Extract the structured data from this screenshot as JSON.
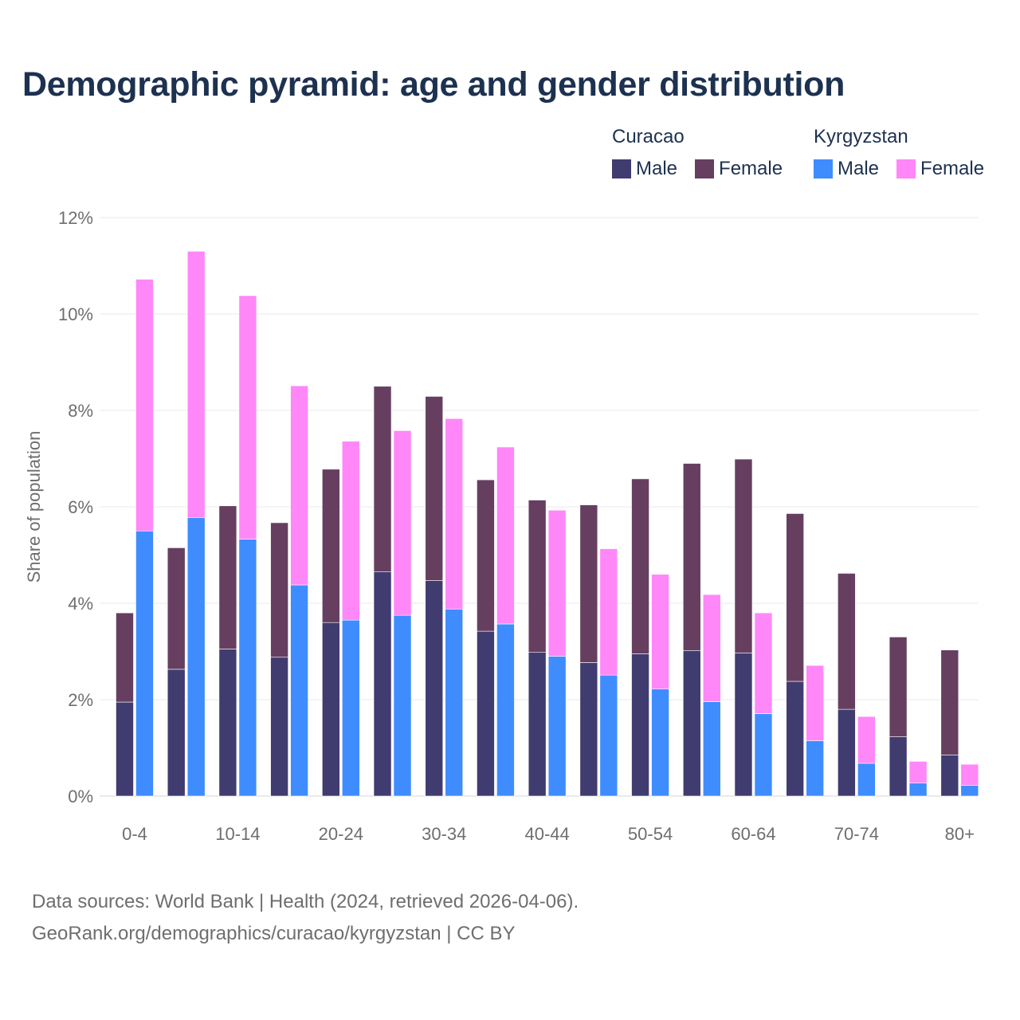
{
  "chart_data": {
    "type": "bar",
    "title": "Demographic pyramid: age and gender distribution",
    "ylabel": "Share of population",
    "xlabel": "",
    "ylim": [
      0,
      12
    ],
    "yticks": [
      "0%",
      "2%",
      "4%",
      "6%",
      "8%",
      "10%",
      "12%"
    ],
    "ytick_values": [
      0,
      2,
      4,
      6,
      8,
      10,
      12
    ],
    "categories": [
      "0-4",
      "5-9",
      "10-14",
      "15-19",
      "20-24",
      "25-29",
      "30-34",
      "35-39",
      "40-44",
      "45-49",
      "50-54",
      "55-59",
      "60-64",
      "65-69",
      "70-74",
      "75-79",
      "80+"
    ],
    "xtick_labels": [
      "0-4",
      "",
      "10-14",
      "",
      "20-24",
      "",
      "30-34",
      "",
      "40-44",
      "",
      "50-54",
      "",
      "60-64",
      "",
      "70-74",
      "",
      "80+"
    ],
    "stacked": true,
    "groups": [
      {
        "name": "Curacao",
        "series": [
          {
            "name": "Male",
            "color": "#403c70",
            "values": [
              1.95,
              2.63,
              3.05,
              2.88,
              3.6,
              4.65,
              4.47,
              3.42,
              2.98,
              2.77,
              2.95,
              3.02,
              2.97,
              2.38,
              1.8,
              1.23,
              0.85
            ]
          },
          {
            "name": "Female",
            "color": "#663f60",
            "values": [
              1.85,
              2.52,
              2.97,
              2.79,
              3.18,
              3.85,
              3.82,
              3.14,
              3.16,
              3.27,
              3.63,
              3.88,
              4.02,
              3.48,
              2.82,
              2.07,
              2.18
            ]
          }
        ]
      },
      {
        "name": "Kyrgyzstan",
        "series": [
          {
            "name": "Male",
            "color": "#3f8cff",
            "values": [
              5.5,
              5.78,
              5.33,
              4.38,
              3.65,
              3.75,
              3.88,
              3.57,
              2.9,
              2.51,
              2.22,
              1.96,
              1.71,
              1.15,
              0.68,
              0.27,
              0.22
            ]
          },
          {
            "name": "Female",
            "color": "#ff87f8",
            "values": [
              5.22,
              5.52,
              5.05,
              4.13,
              3.71,
              3.83,
              3.95,
              3.67,
              3.03,
              2.62,
              2.38,
              2.22,
              2.09,
              1.56,
              0.97,
              0.45,
              0.44
            ]
          }
        ]
      }
    ],
    "legend": {
      "position": "top-right"
    },
    "grid": true
  },
  "footer": {
    "line1": "Data sources: World Bank | Health (2024, retrieved 2026-04-06).",
    "line2": "GeoRank.org/demographics/curacao/kyrgyzstan | CC BY"
  }
}
